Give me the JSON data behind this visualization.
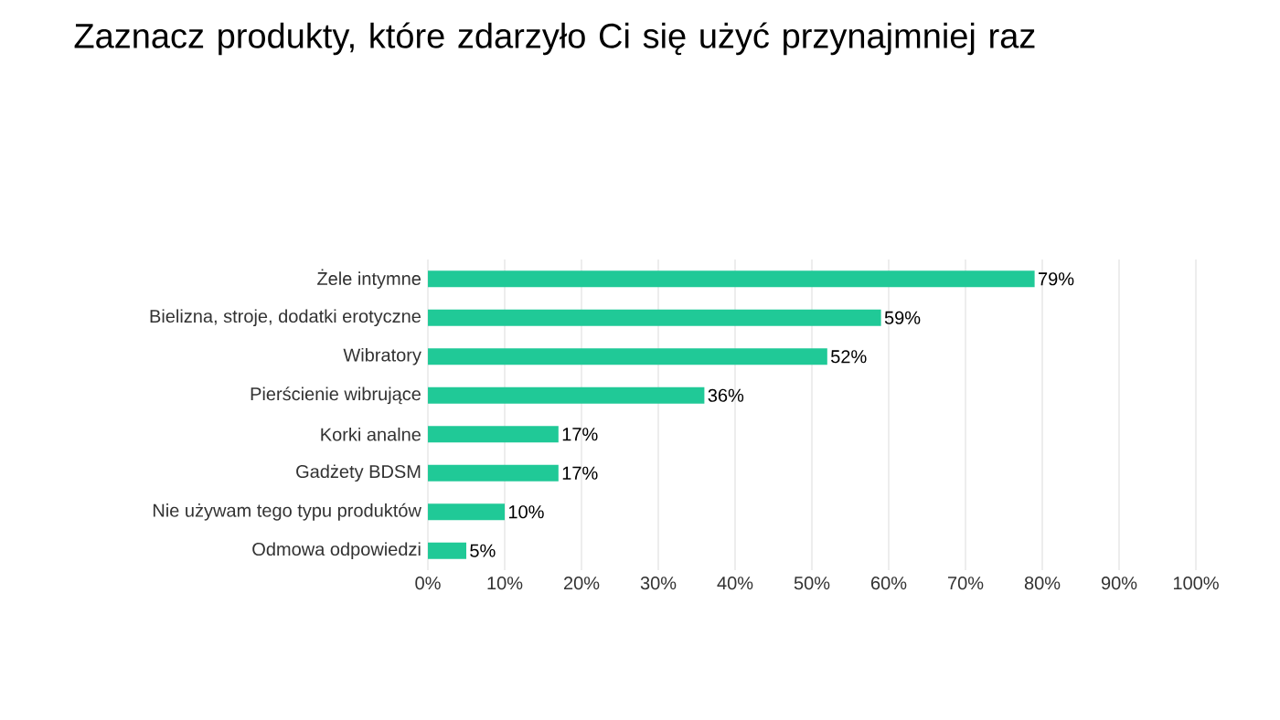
{
  "chart_data": {
    "type": "bar",
    "orientation": "horizontal",
    "title": "Zaznacz produkty, które zdarzyło Ci się użyć przynajmniej raz",
    "categories": [
      "Żele intymne",
      "Bielizna, stroje, dodatki erotyczne",
      "Wibratory",
      "Pierścienie wibrujące",
      "Korki analne",
      "Gadżety BDSM",
      "Nie używam tego typu produktów",
      "Odmowa odpowiedzi"
    ],
    "values": [
      79,
      59,
      52,
      36,
      17,
      17,
      10,
      5
    ],
    "value_labels": [
      "79%",
      "59%",
      "52%",
      "36%",
      "17%",
      "17%",
      "10%",
      "5%"
    ],
    "color": "#20c997",
    "xlim": [
      0,
      100
    ],
    "xticks": [
      {
        "value": 0,
        "label": "0%"
      },
      {
        "value": 10,
        "label": "10%"
      },
      {
        "value": 20,
        "label": "20%"
      },
      {
        "value": 30,
        "label": "30%"
      },
      {
        "value": 40,
        "label": "40%"
      },
      {
        "value": 50,
        "label": "50%"
      },
      {
        "value": 60,
        "label": "60%"
      },
      {
        "value": 70,
        "label": "70%"
      },
      {
        "value": 80,
        "label": "80%"
      },
      {
        "value": 90,
        "label": "90%"
      },
      {
        "value": 100,
        "label": "100%"
      }
    ],
    "grid": "x"
  }
}
